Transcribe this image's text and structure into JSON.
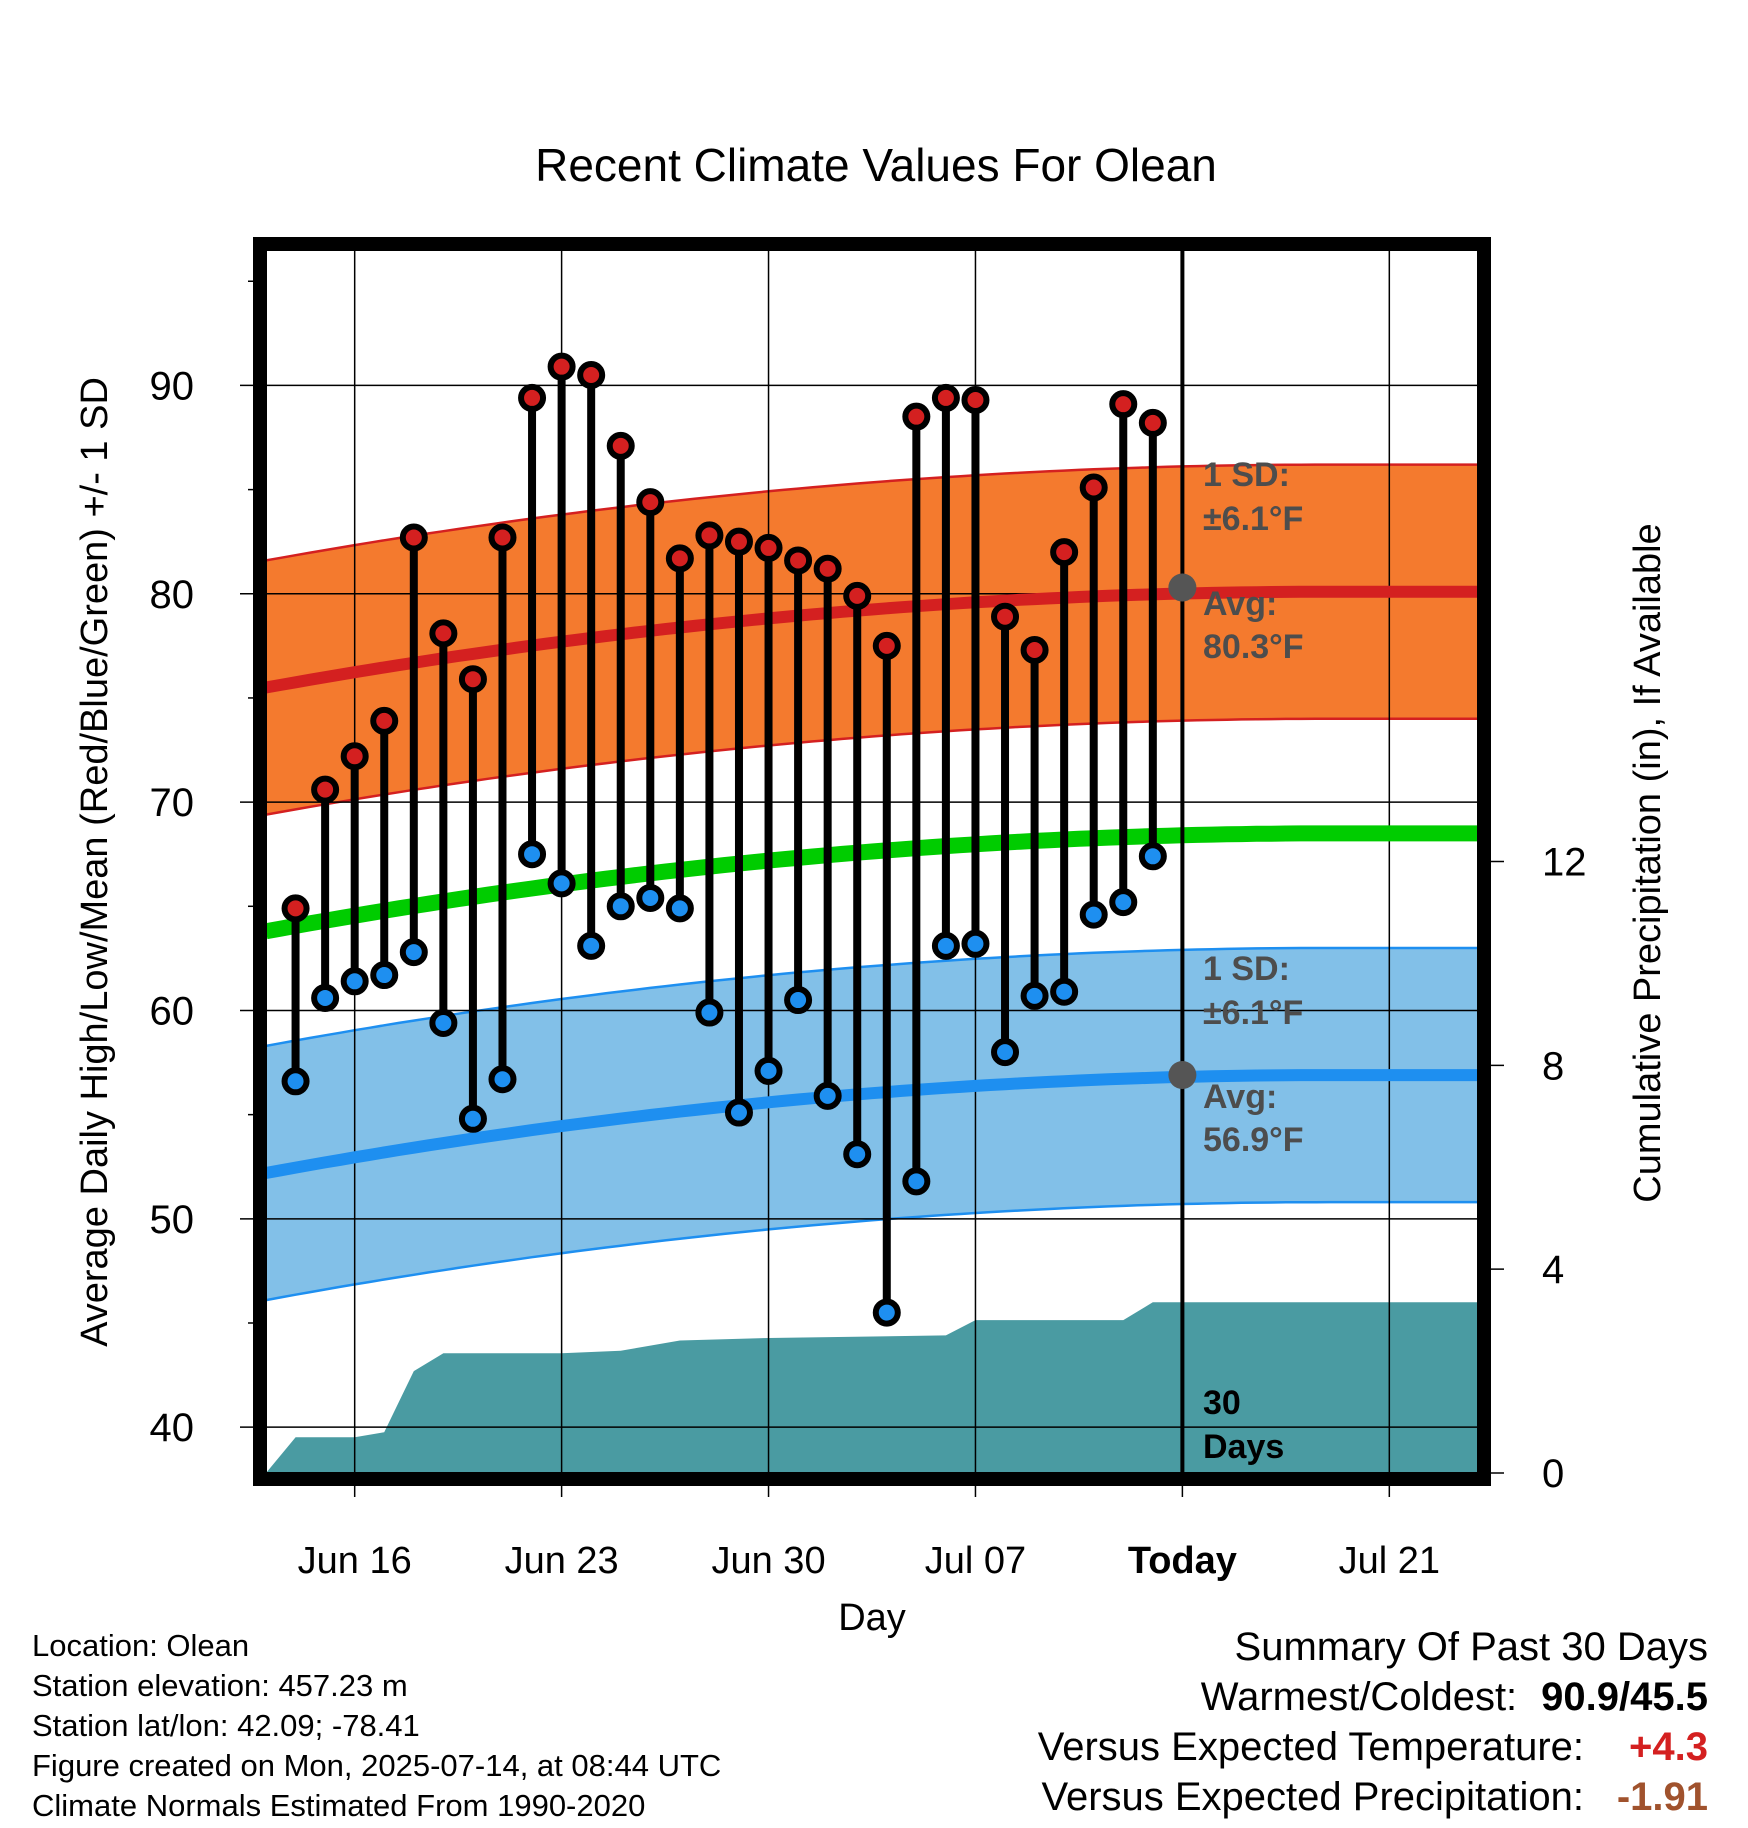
{
  "chart_data": {
    "type": "line",
    "title": "Recent Climate Values For Olean",
    "xlabel": "Day",
    "ylabel": "Average Daily High/Low/Mean (Red/Blue/Green) +/- 1 SD",
    "y2label": "Cumulative Precipitation (in), If Available",
    "x_tick_labels": [
      "Jun 16",
      "Jun 23",
      "Jun 30",
      "Jul 07",
      "Today",
      "Jul 21"
    ],
    "y_ticks": [
      40,
      50,
      60,
      70,
      80,
      90
    ],
    "y2_ticks": [
      0,
      4,
      8,
      12
    ],
    "ylim": [
      37.8,
      96.5
    ],
    "y2lim": [
      0,
      24
    ],
    "x_days_since_jun13": "n/a",
    "dates": [
      "Jun 14",
      "Jun 15",
      "Jun 16",
      "Jun 17",
      "Jun 18",
      "Jun 19",
      "Jun 20",
      "Jun 21",
      "Jun 22",
      "Jun 23",
      "Jun 24",
      "Jun 25",
      "Jun 26",
      "Jun 27",
      "Jun 28",
      "Jun 29",
      "Jun 30",
      "Jul 01",
      "Jul 02",
      "Jul 03",
      "Jul 04",
      "Jul 05",
      "Jul 06",
      "Jul 07",
      "Jul 08",
      "Jul 09",
      "Jul 10",
      "Jul 11",
      "Jul 12",
      "Jul 13"
    ],
    "series": [
      {
        "name": "High",
        "color": "#d42020",
        "values": [
          64.9,
          70.6,
          72.2,
          73.9,
          82.7,
          78.1,
          75.9,
          82.7,
          89.4,
          90.9,
          90.5,
          87.1,
          84.4,
          81.7,
          82.8,
          82.5,
          82.2,
          81.6,
          81.2,
          79.9,
          77.5,
          88.5,
          89.4,
          89.3,
          78.9,
          77.3,
          82.0,
          85.1,
          89.1,
          88.2
        ]
      },
      {
        "name": "Low",
        "color": "#1e8ff0",
        "values": [
          56.6,
          60.6,
          61.4,
          61.7,
          62.8,
          59.4,
          54.8,
          56.7,
          67.5,
          66.1,
          63.1,
          65.0,
          65.4,
          64.9,
          59.9,
          55.1,
          57.1,
          60.5,
          55.9,
          53.1,
          45.5,
          51.8,
          63.1,
          63.2,
          58.0,
          60.7,
          60.9,
          64.6,
          65.2,
          67.4
        ]
      }
    ],
    "normals": {
      "high_avg_start": 75.5,
      "high_avg_today": 80.3,
      "high_avg_end": 80.1,
      "high_sd": 6.1,
      "low_avg_start": 52.2,
      "low_avg_today": 56.9,
      "low_avg_end": 56.9,
      "low_sd": 6.1,
      "mean_start": 63.8,
      "mean_end": 68.5
    },
    "precip_cumulative": {
      "dates": [
        "Jun 13",
        "Jun 14",
        "Jun 16",
        "Jun 17",
        "Jun 18",
        "Jun 19",
        "Jun 23",
        "Jun 25",
        "Jun 26",
        "Jun 27",
        "Jun 30",
        "Jul 06",
        "Jul 07",
        "Jul 12",
        "Jul 13",
        "Jul 14",
        "Jul 24"
      ],
      "values": [
        0.0,
        0.7,
        0.7,
        0.8,
        2.0,
        2.35,
        2.35,
        2.4,
        2.5,
        2.6,
        2.65,
        2.7,
        3.0,
        3.0,
        3.35,
        3.35,
        3.35
      ]
    },
    "annotations": {
      "high_sd_label_1": "1 SD:",
      "high_sd_label_2": "±6.1°F",
      "high_avg_label_1": "Avg:",
      "high_avg_label_2": "80.3°F",
      "low_sd_label_1": "1 SD:",
      "low_sd_label_2": "±6.1°F",
      "low_avg_label_1": "Avg:",
      "low_avg_label_2": "56.9°F",
      "days_label_1": "30",
      "days_label_2": "Days"
    },
    "colors": {
      "high_band": "#f47a2e",
      "high_line": "#d42020",
      "low_band": "#82c0e8",
      "low_line": "#1e8ff0",
      "mean_line": "#00cc00",
      "precip": "#4a9ba2",
      "marker_edge": "#000000"
    }
  },
  "footer": {
    "location": "Location: Olean",
    "elevation": "Station elevation: 457.23 m",
    "latlon": "Station lat/lon: 42.09; -78.41",
    "created": "Figure created on Mon, 2025-07-14, at 08:44 UTC",
    "normals": "Climate Normals Estimated From 1990-2020"
  },
  "summary": {
    "title": "Summary Of Past 30 Days",
    "warm_cold_label": "Warmest/Coldest:",
    "warm_cold_value": "90.9/45.5",
    "temp_label": "Versus Expected Temperature:",
    "temp_value": "+4.3",
    "temp_color": "#d42020",
    "precip_label": "Versus Expected Precipitation:",
    "precip_value": "-1.91",
    "precip_color": "#a0522d"
  }
}
